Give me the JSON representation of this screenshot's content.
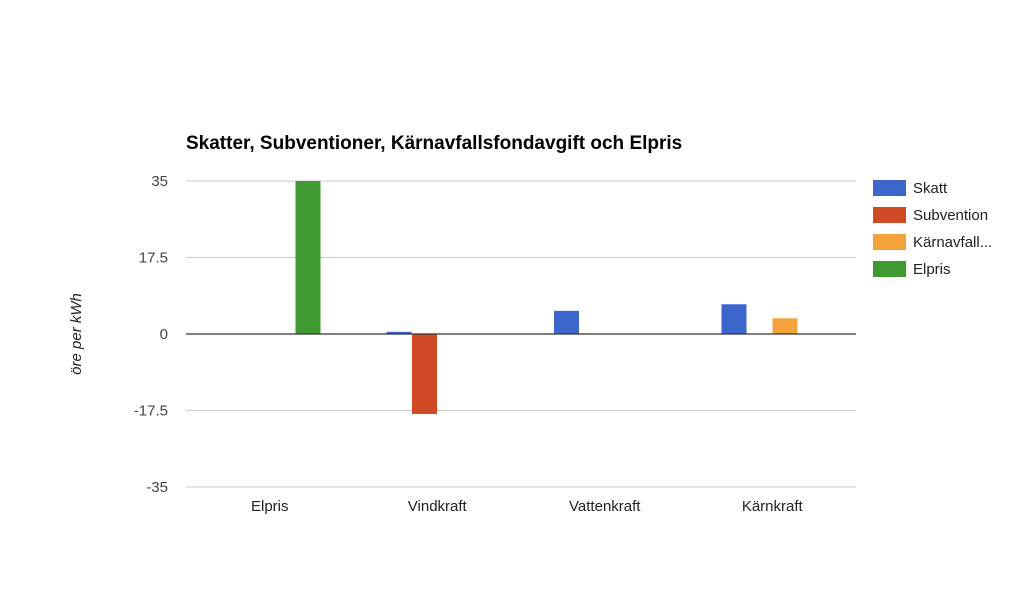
{
  "chart_data": {
    "type": "bar",
    "title": "Skatter, Subventioner, Kärnavfallsfondavgift och Elpris",
    "ylabel": "öre per kWh",
    "xlabel": "",
    "ylim": [
      -35,
      35
    ],
    "yticks": [
      "35",
      "17.5",
      "0",
      "-17.5",
      "-35"
    ],
    "ytick_values": [
      35,
      17.5,
      0,
      -17.5,
      -35
    ],
    "categories": [
      "Elpris",
      "Vindkraft",
      "Vattenkraft",
      "Kärnkraft"
    ],
    "series": [
      {
        "name": "Skatt",
        "legend_label": "Skatt",
        "color": "#3c66cc",
        "values": [
          0,
          0.5,
          5.3,
          6.8
        ]
      },
      {
        "name": "Subvention",
        "legend_label": "Subvention",
        "color": "#d04a25",
        "values": [
          0,
          -18.3,
          0,
          0
        ]
      },
      {
        "name": "Kärnavfallsfondavgift",
        "legend_label": "Kärnavfall...",
        "color": "#f3a33a",
        "values": [
          0,
          0,
          0,
          3.6
        ]
      },
      {
        "name": "Elpris",
        "legend_label": "Elpris",
        "color": "#3f9a32",
        "values": [
          35,
          0,
          0,
          0
        ]
      }
    ],
    "grid": true,
    "legend_position": "right"
  }
}
